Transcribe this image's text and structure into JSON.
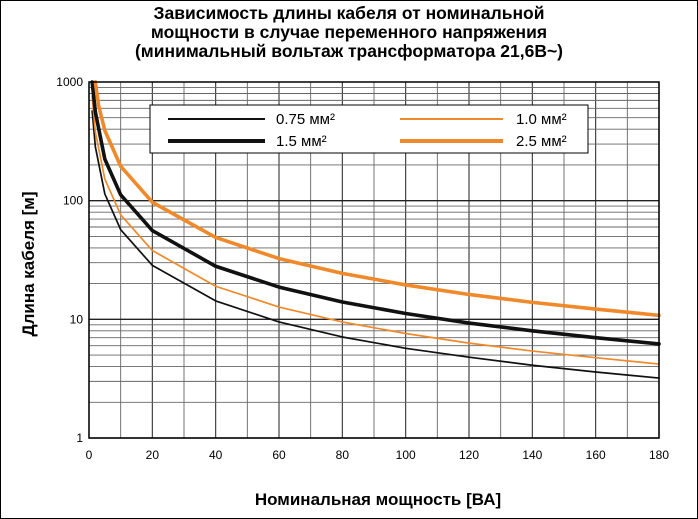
{
  "chart_data": {
    "type": "line",
    "title_lines": [
      "Зависимость длины кабеля от номинальной",
      "мощности в случае переменного напряжения",
      "(минимальный вольтаж трансформатора 21,6В~)"
    ],
    "xlabel": "Номинальная мощность [ВА]",
    "ylabel": "Длина кабеля [м]",
    "xlim": [
      0,
      180
    ],
    "ylim": [
      1,
      1000
    ],
    "yscale": "log",
    "grid": true,
    "legend_position": "top",
    "x_ticks": [
      "0",
      "20",
      "40",
      "60",
      "80",
      "100",
      "120",
      "140",
      "160",
      "180"
    ],
    "y_ticks": [
      "1",
      "10",
      "100",
      "1000"
    ],
    "series": [
      {
        "name": "0.75 мм²",
        "color": "#111111",
        "style": "thin",
        "x": [
          1,
          2,
          5,
          10,
          20,
          40,
          60,
          80,
          100,
          120,
          140,
          160,
          180
        ],
        "y": [
          570,
          285,
          114,
          57,
          28.5,
          14.3,
          9.5,
          7.1,
          5.7,
          4.8,
          4.1,
          3.6,
          3.2
        ]
      },
      {
        "name": "1.0 мм²",
        "color": "#f0892a",
        "style": "thin",
        "x": [
          1,
          2,
          5,
          10,
          20,
          40,
          60,
          80,
          100,
          120,
          140,
          160,
          180
        ],
        "y": [
          760,
          380,
          152,
          76,
          38,
          19,
          12.7,
          9.5,
          7.6,
          6.3,
          5.4,
          4.75,
          4.2
        ]
      },
      {
        "name": "1.5 мм²",
        "color": "#111111",
        "style": "thick",
        "x": [
          1,
          2,
          5,
          10,
          20,
          40,
          60,
          80,
          100,
          120,
          140,
          160,
          180
        ],
        "y": [
          1000,
          560,
          224,
          112,
          56,
          28,
          18.7,
          14,
          11.2,
          9.3,
          8,
          7,
          6.2
        ]
      },
      {
        "name": "2.5 мм²",
        "color": "#f0892a",
        "style": "thick",
        "x": [
          2,
          3,
          5,
          10,
          20,
          40,
          60,
          80,
          100,
          120,
          140,
          160,
          180
        ],
        "y": [
          1000,
          640,
          390,
          195,
          97,
          49,
          32.5,
          24.4,
          19.5,
          16.2,
          13.9,
          12.2,
          10.8
        ]
      }
    ]
  }
}
